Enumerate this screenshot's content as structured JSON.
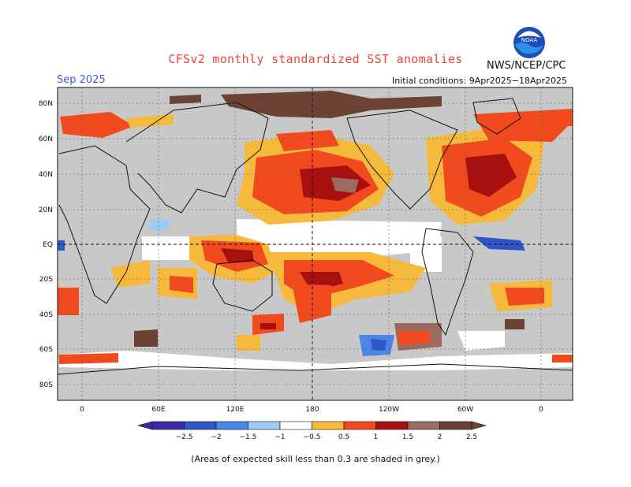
{
  "header": {
    "title": "CFSv2 monthly standardized SST anomalies",
    "agency": "NWS/NCEP/CPC",
    "month": "Sep 2025",
    "initial_conditions": "Initial conditions: 9Apr2025−18Apr2025",
    "logo_text": "NOAA"
  },
  "axes": {
    "lat_labels": [
      "80N",
      "60N",
      "40N",
      "20N",
      "EQ",
      "20S",
      "40S",
      "60S",
      "80S"
    ],
    "lon_labels": [
      "0",
      "60E",
      "120E",
      "180",
      "120W",
      "60W",
      "0"
    ]
  },
  "colorbar": {
    "tick_labels": [
      "−2.5",
      "−2",
      "−1.5",
      "−1",
      "−0.5",
      "0.5",
      "1",
      "1.5",
      "2",
      "2.5"
    ],
    "colors": [
      "#3a2aa8",
      "#2f55c8",
      "#4a86e8",
      "#9ecbf3",
      "#ffffff",
      "#f5b93c",
      "#f04a1e",
      "#a80f0f",
      "#9c6b60",
      "#6b4234"
    ]
  },
  "footer": {
    "caption": "(Areas of expected skill less than 0.3 are shaded in grey.)"
  },
  "colors": {
    "grey": "#c8c8c8",
    "title": "#e8443a",
    "month": "#3a5ec8"
  }
}
